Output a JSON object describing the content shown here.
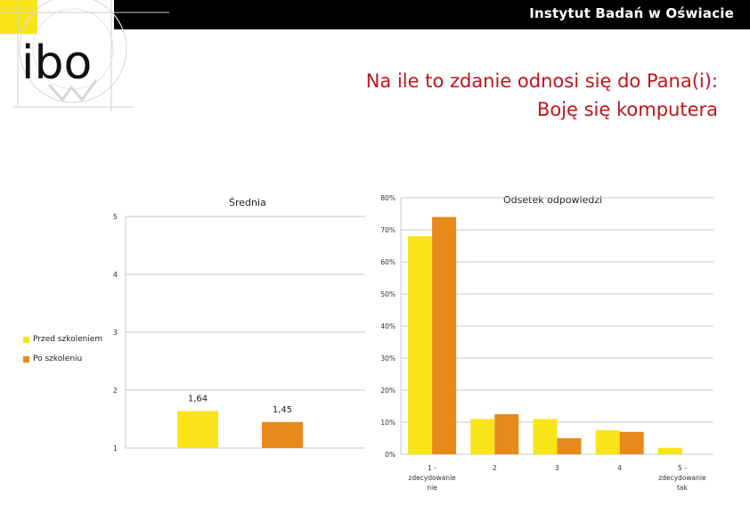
{
  "header": {
    "institute": "Instytut Badań w Oświacie",
    "logo_text": "ibo",
    "title_line1": "Na ile to zdanie odnosi się do Pana(i):",
    "title_line2": "Boję się komputera"
  },
  "colors": {
    "before": "#f9e41a",
    "after": "#e8891c",
    "title": "#c0141c",
    "grid": "#c8c8c8"
  },
  "legend": [
    {
      "label": "Przed szkoleniem",
      "color": "#f9e41a"
    },
    {
      "label": "Po szkoleniu",
      "color": "#e8891c"
    }
  ],
  "chart_data": [
    {
      "type": "bar",
      "title": "Średnia",
      "ylim": [
        1,
        5
      ],
      "yticks": [
        "1",
        "2",
        "3",
        "4",
        "5"
      ],
      "series": [
        {
          "name": "Przed szkoleniem",
          "values": [
            1.64
          ],
          "labels": [
            "1,64"
          ]
        },
        {
          "name": "Po szkoleniu",
          "values": [
            1.45
          ],
          "labels": [
            "1,45"
          ]
        }
      ],
      "grid": true
    },
    {
      "type": "bar",
      "title": "Odsetek odpowiedzi",
      "ylim": [
        0,
        80
      ],
      "yticks": [
        "0%",
        "10%",
        "20%",
        "30%",
        "40%",
        "50%",
        "60%",
        "70%",
        "80%"
      ],
      "categories": [
        "1 - zdecydowanie nie",
        "2",
        "3",
        "4",
        "5 - zdecydowanie tak"
      ],
      "category_lines": [
        [
          "1 -",
          "zdecydowanie",
          "nie"
        ],
        [
          "2"
        ],
        [
          "3"
        ],
        [
          "4"
        ],
        [
          "5 -",
          "zdecydowanie",
          "tak"
        ]
      ],
      "series": [
        {
          "name": "Przed szkoleniem",
          "values": [
            68,
            11,
            11,
            7.5,
            2
          ]
        },
        {
          "name": "Po szkoleniu",
          "values": [
            74,
            12.5,
            5,
            7,
            0
          ]
        }
      ],
      "grid": true
    }
  ]
}
